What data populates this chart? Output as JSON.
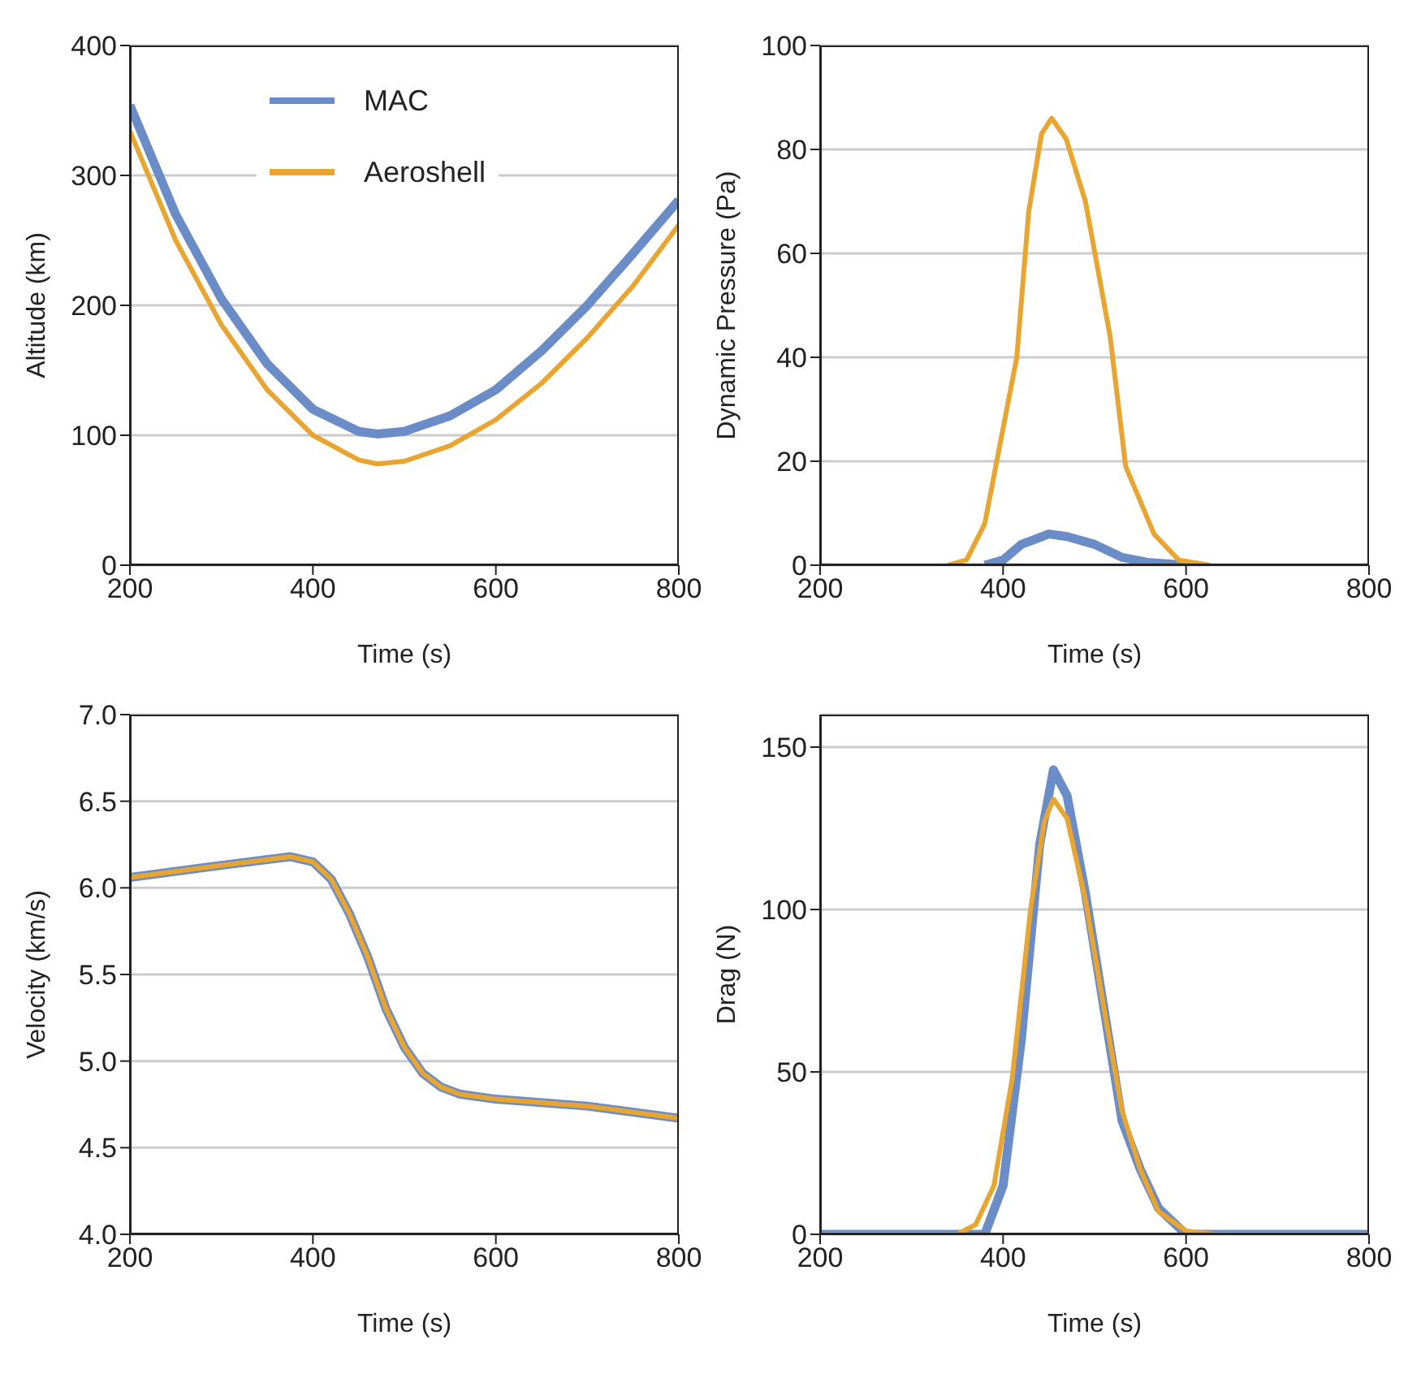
{
  "chart_data": [
    {
      "type": "line",
      "xlabel": "Time (s)",
      "ylabel": "Altitude  (km)",
      "xlim": [
        200,
        800
      ],
      "xticks": [
        200,
        400,
        600,
        800
      ],
      "ylim": [
        0,
        400
      ],
      "yticks": [
        0,
        100,
        200,
        300,
        400
      ],
      "grid": "y",
      "legend": "top",
      "series": [
        {
          "name": "MAC",
          "color": "#6a8dc8",
          "x": [
            200,
            250,
            300,
            350,
            400,
            450,
            470,
            500,
            550,
            600,
            650,
            700,
            750,
            800
          ],
          "values": [
            354,
            270,
            205,
            155,
            120,
            103,
            101,
            103,
            115,
            135,
            165,
            200,
            240,
            281
          ]
        },
        {
          "name": "Aeroshell",
          "color": "#e8a530",
          "x": [
            200,
            250,
            300,
            350,
            400,
            450,
            470,
            500,
            550,
            600,
            650,
            700,
            750,
            800
          ],
          "values": [
            334,
            250,
            185,
            135,
            100,
            81,
            78,
            80,
            92,
            112,
            140,
            175,
            215,
            262
          ]
        }
      ]
    },
    {
      "type": "line",
      "xlabel": "Time (s)",
      "ylabel": "Dynamic  Pressure (Pa)",
      "xlim": [
        200,
        800
      ],
      "xticks": [
        200,
        400,
        600,
        800
      ],
      "ylim": [
        0,
        100
      ],
      "yticks": [
        0,
        20,
        40,
        60,
        80,
        100
      ],
      "grid": "y",
      "series": [
        {
          "color": "#6a8dc8",
          "x": [
            380,
            400,
            420,
            450,
            470,
            500,
            530,
            560,
            600
          ],
          "values": [
            0,
            1,
            4,
            6,
            5.5,
            4,
            1.5,
            0.5,
            0
          ]
        },
        {
          "color": "#e8a530",
          "x": [
            340,
            360,
            380,
            404,
            415,
            428,
            442,
            453,
            469,
            490,
            517,
            534,
            565,
            592,
            626
          ],
          "values": [
            0,
            1,
            8,
            30,
            40,
            68,
            83,
            86,
            82,
            70,
            44,
            19,
            6,
            1,
            0
          ]
        }
      ]
    },
    {
      "type": "line",
      "xlabel": "Time (s)",
      "ylabel": "Velocity  (km/s)",
      "xlim": [
        200,
        800
      ],
      "xticks": [
        200,
        400,
        600,
        800
      ],
      "ylim": [
        4,
        7
      ],
      "yticks": [
        {
          "value": 4,
          "label": "4.0"
        },
        4.5,
        {
          "value": 5,
          "label": "5.0"
        },
        5.5,
        {
          "value": 6,
          "label": "6.0"
        },
        6.5,
        {
          "value": 7,
          "label": "7.0"
        }
      ],
      "grid": "y",
      "series": [
        {
          "color": "#6a8dc8",
          "x": [
            200,
            300,
            375,
            400,
            420,
            440,
            460,
            480,
            500,
            520,
            540,
            560,
            600,
            700,
            800
          ],
          "values": [
            6.06,
            6.13,
            6.18,
            6.15,
            6.05,
            5.85,
            5.6,
            5.3,
            5.08,
            4.93,
            4.85,
            4.81,
            4.78,
            4.74,
            4.67
          ]
        },
        {
          "color": "#e8a530",
          "x": [
            200,
            300,
            375,
            400,
            420,
            440,
            460,
            480,
            500,
            520,
            540,
            560,
            600,
            700,
            800
          ],
          "values": [
            6.06,
            6.13,
            6.18,
            6.15,
            6.05,
            5.85,
            5.6,
            5.3,
            5.08,
            4.93,
            4.85,
            4.81,
            4.78,
            4.74,
            4.67
          ]
        }
      ]
    },
    {
      "type": "line",
      "xlabel": "Time (s)",
      "ylabel": "Drag (N)",
      "xlim": [
        200,
        800
      ],
      "xticks": [
        200,
        400,
        600,
        800
      ],
      "ylim": [
        0,
        160
      ],
      "yticks": [
        0,
        50,
        100,
        150
      ],
      "grid": "y",
      "series": [
        {
          "color": "#6a8dc8",
          "x": [
            200,
            380,
            400,
            420,
            440,
            455,
            470,
            490,
            510,
            530,
            550,
            570,
            600,
            800
          ],
          "values": [
            0,
            0,
            15,
            60,
            120,
            143,
            135,
            105,
            70,
            35,
            20,
            8,
            0,
            0
          ]
        },
        {
          "color": "#e8a530",
          "x": [
            200,
            350,
            370,
            390,
            410,
            430,
            445,
            455,
            470,
            490,
            510,
            530,
            550,
            570,
            600,
            630,
            800
          ],
          "values": [
            0,
            0,
            3,
            15,
            48,
            100,
            127,
            134,
            128,
            103,
            70,
            38,
            20,
            7,
            1,
            0,
            0
          ]
        }
      ]
    }
  ]
}
